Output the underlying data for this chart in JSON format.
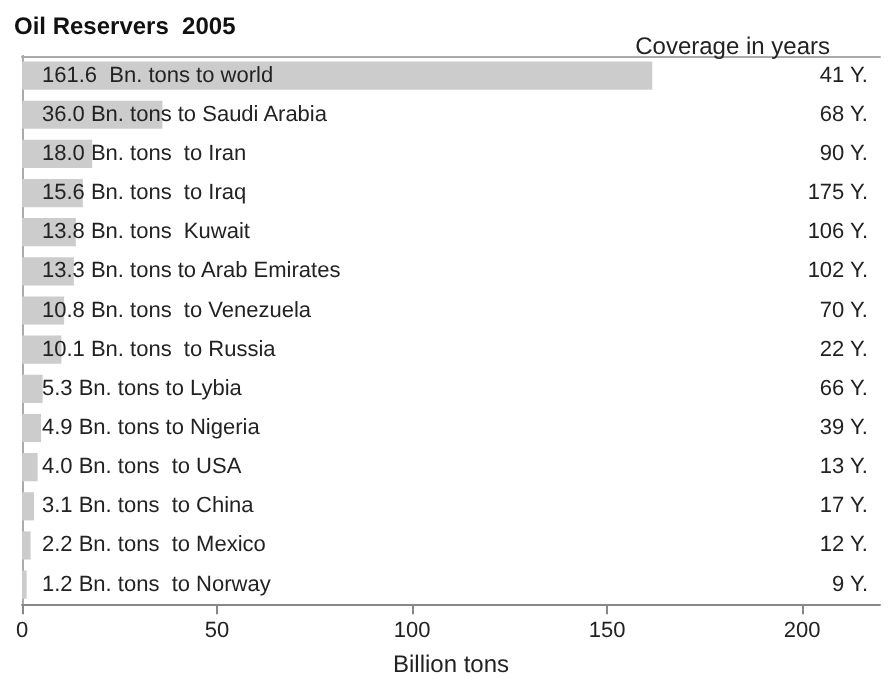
{
  "chart_data": {
    "type": "bar",
    "orientation": "horizontal",
    "title": "Oil Reservers  2005",
    "xlabel": "Billion tons",
    "y2label": "Coverage in years",
    "categories": [
      null,
      null,
      null,
      null,
      null,
      null,
      null,
      null,
      null,
      null,
      null,
      null,
      null,
      null
    ],
    "values": [
      161.6,
      36.0,
      18.0,
      15.6,
      13.8,
      13.3,
      10.8,
      10.1,
      5.3,
      4.9,
      4.0,
      3.1,
      2.2,
      1.2
    ],
    "value_labels": [
      "161.6  Bn. tons to world",
      "36.0 Bn. tons to Saudi Arabia",
      "18.0 Bn. tons  to Iran",
      "15.6 Bn. tons  to Iraq",
      "13.8 Bn. tons  Kuwait",
      "13.3 Bn. tons to Arab Emirates",
      "10.8 Bn. tons  to Venezuela",
      "10.1 Bn. tons  to Russia",
      "5.3 Bn. tons to Lybia",
      "4.9 Bn. tons to Nigeria",
      "4.0 Bn. tons  to USA",
      "3.1 Bn. tons  to China",
      "2.2 Bn. tons  to Mexico",
      "1.2 Bn. tons  to Norway"
    ],
    "annotations": [
      "41 Y.",
      "68 Y.",
      "90 Y.",
      "175 Y.",
      "106 Y.",
      "102 Y.",
      "70 Y.",
      "22 Y.",
      "66 Y.",
      "39 Y.",
      "13 Y.",
      "17 Y.",
      "12 Y.",
      "9 Y."
    ],
    "color": "#cccccc",
    "xlim": [
      0,
      220
    ],
    "xticks": [
      0,
      50,
      100,
      150,
      200
    ],
    "grid": false
  }
}
